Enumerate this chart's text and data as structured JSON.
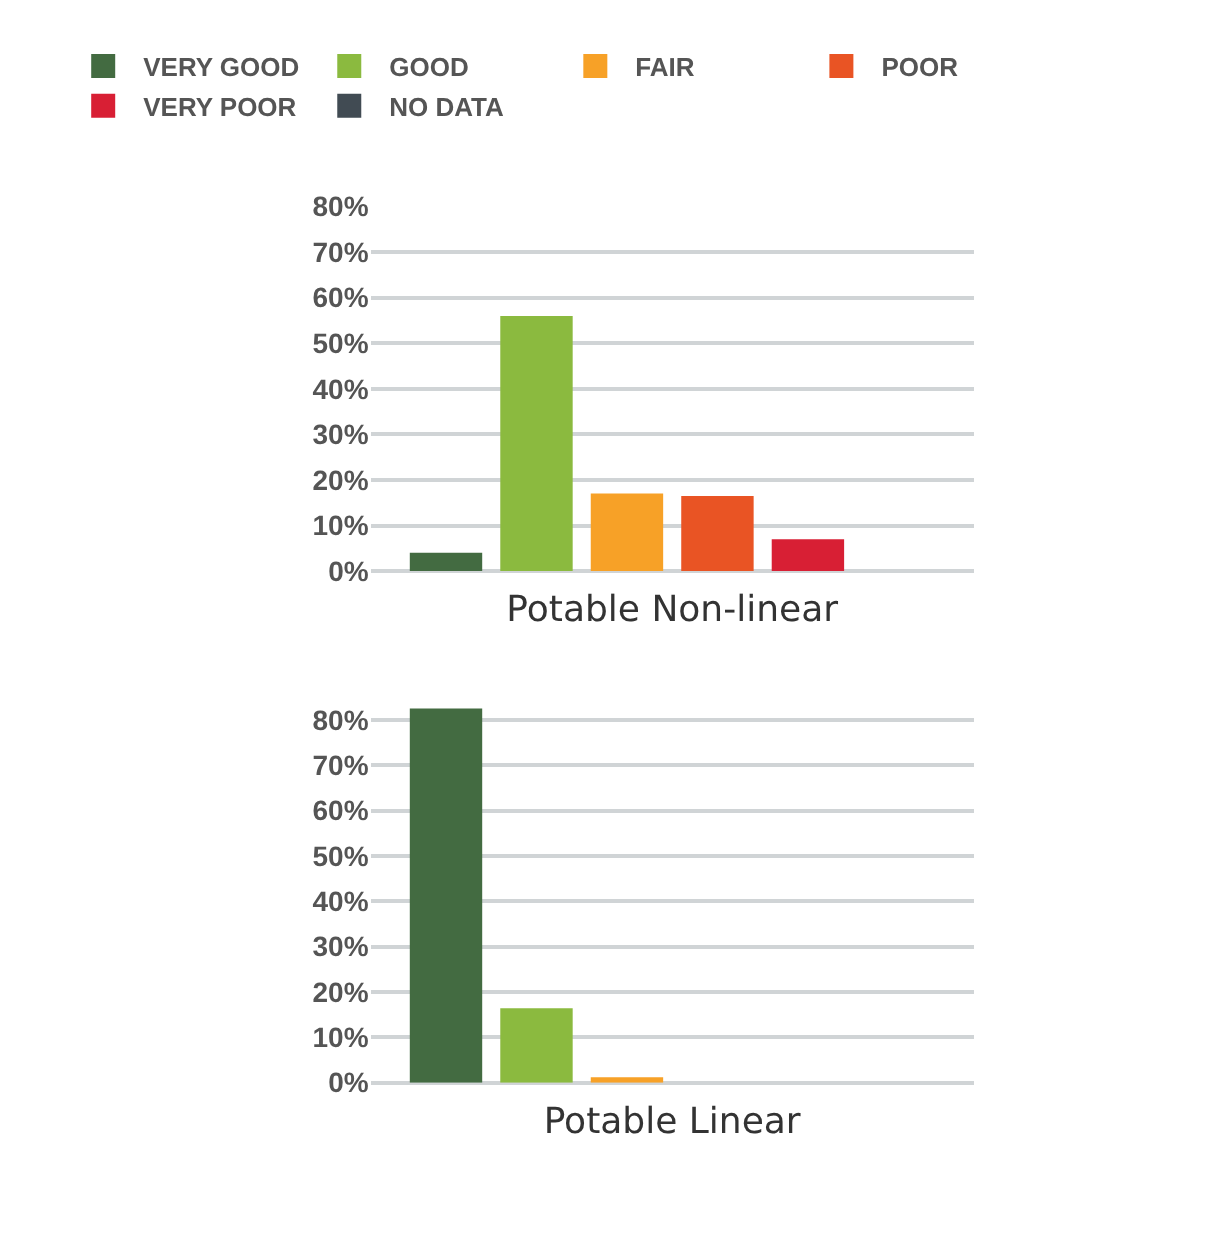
{
  "chart_data": [
    {
      "type": "bar",
      "xlabel": "Potable Non-linear",
      "categories": [
        null
      ],
      "legend": "top",
      "grid": "y",
      "tick_labels": "y",
      "ylim": [
        0,
        80
      ],
      "yticks": [
        {
          "value": 0,
          "label": "0%"
        },
        {
          "value": 10,
          "label": "10%"
        },
        {
          "value": 20,
          "label": "20%"
        },
        {
          "value": 30,
          "label": "30%"
        },
        {
          "value": 40,
          "label": "40%"
        },
        {
          "value": 50,
          "label": "50%"
        },
        {
          "value": 60,
          "label": "60%"
        },
        {
          "value": 70,
          "label": "70%"
        },
        {
          "value": 80,
          "label": "80%"
        }
      ],
      "series": [
        {
          "name": "VERY GOOD",
          "color": "#436b41",
          "values": [
            4
          ]
        },
        {
          "name": "GOOD",
          "color": "#8bba3f",
          "values": [
            56
          ]
        },
        {
          "name": "FAIR",
          "color": "#f7a127",
          "values": [
            17
          ]
        },
        {
          "name": "POOR",
          "color": "#e95424",
          "values": [
            16.5
          ]
        },
        {
          "name": "VERY POOR",
          "color": "#d81f34",
          "values": [
            7
          ]
        },
        {
          "name": "NO DATA",
          "color": "#414b53",
          "values": [
            null
          ]
        }
      ]
    },
    {
      "type": "bar",
      "xlabel": "Potable Linear",
      "categories": [
        null
      ],
      "grid": "y",
      "tick_labels": "y",
      "ylim": [
        0,
        83
      ],
      "yticks": [
        {
          "value": 0,
          "label": "0%"
        },
        {
          "value": 10,
          "label": "10%"
        },
        {
          "value": 20,
          "label": "20%"
        },
        {
          "value": 30,
          "label": "30%"
        },
        {
          "value": 40,
          "label": "40%"
        },
        {
          "value": 50,
          "label": "50%"
        },
        {
          "value": 60,
          "label": "60%"
        },
        {
          "value": 70,
          "label": "70%"
        },
        {
          "value": 80,
          "label": "80%"
        }
      ],
      "series": [
        {
          "color": "#436b41",
          "values": [
            82.5
          ]
        },
        {
          "color": "#8bba3f",
          "values": [
            16.4
          ]
        },
        {
          "color": "#f7a127",
          "values": [
            1.2
          ]
        },
        {
          "color": "#e95424",
          "values": [
            null
          ]
        },
        {
          "color": "#d81f34",
          "values": [
            null
          ]
        },
        {
          "color": "#414b53",
          "values": [
            null
          ]
        }
      ]
    }
  ]
}
